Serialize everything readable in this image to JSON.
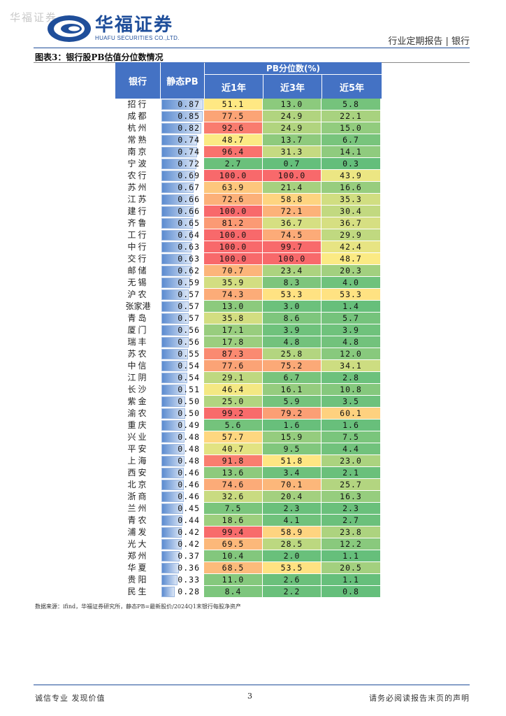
{
  "watermark": "华福证券",
  "logo": {
    "cn": "华福证券",
    "en": "HUAFU SECURITIES CO.,LTD."
  },
  "header": {
    "report_type": "行业定期报告 | 银行"
  },
  "figure": {
    "title": "图表3：银行股PB估值分位数情况"
  },
  "table": {
    "col_bank": "银行",
    "col_pb": "静态PB",
    "group_header": "PB分位数(%)",
    "col_1y": "近1年",
    "col_3y": "近3年",
    "col_5y": "近5年",
    "pb_max": 0.87,
    "colors": {
      "red": "#f8696b",
      "yellow": "#ffeb84",
      "green": "#63be7b",
      "header": "#4472c4"
    },
    "rows": [
      {
        "name": "招行",
        "pb": "0.87",
        "p1": "51.1",
        "p3": "13.0",
        "p5": "5.8"
      },
      {
        "name": "成都",
        "pb": "0.85",
        "p1": "77.5",
        "p3": "24.9",
        "p5": "22.1"
      },
      {
        "name": "杭州",
        "pb": "0.82",
        "p1": "92.6",
        "p3": "24.9",
        "p5": "15.0"
      },
      {
        "name": "常熟",
        "pb": "0.74",
        "p1": "48.7",
        "p3": "13.7",
        "p5": "6.7"
      },
      {
        "name": "南京",
        "pb": "0.74",
        "p1": "96.4",
        "p3": "31.3",
        "p5": "14.1"
      },
      {
        "name": "宁波",
        "pb": "0.72",
        "p1": "2.7",
        "p3": "0.7",
        "p5": "0.3"
      },
      {
        "name": "农行",
        "pb": "0.69",
        "p1": "100.0",
        "p3": "100.0",
        "p5": "43.9"
      },
      {
        "name": "苏州",
        "pb": "0.67",
        "p1": "63.9",
        "p3": "21.4",
        "p5": "16.6"
      },
      {
        "name": "江苏",
        "pb": "0.66",
        "p1": "72.6",
        "p3": "58.8",
        "p5": "35.3"
      },
      {
        "name": "建行",
        "pb": "0.66",
        "p1": "100.0",
        "p3": "72.1",
        "p5": "30.4"
      },
      {
        "name": "齐鲁",
        "pb": "0.65",
        "p1": "81.2",
        "p3": "36.7",
        "p5": "36.7"
      },
      {
        "name": "工行",
        "pb": "0.64",
        "p1": "100.0",
        "p3": "74.5",
        "p5": "29.9"
      },
      {
        "name": "中行",
        "pb": "0.63",
        "p1": "100.0",
        "p3": "99.7",
        "p5": "42.4"
      },
      {
        "name": "交行",
        "pb": "0.63",
        "p1": "100.0",
        "p3": "100.0",
        "p5": "48.7"
      },
      {
        "name": "邮储",
        "pb": "0.62",
        "p1": "70.7",
        "p3": "23.4",
        "p5": "20.3"
      },
      {
        "name": "无锡",
        "pb": "0.59",
        "p1": "35.9",
        "p3": "8.3",
        "p5": "4.0"
      },
      {
        "name": "沪农",
        "pb": "0.57",
        "p1": "74.3",
        "p3": "53.3",
        "p5": "53.3"
      },
      {
        "name": "张家港",
        "pb": "0.57",
        "p1": "13.0",
        "p3": "3.0",
        "p5": "1.4"
      },
      {
        "name": "青岛",
        "pb": "0.57",
        "p1": "35.8",
        "p3": "8.6",
        "p5": "5.7"
      },
      {
        "name": "厦门",
        "pb": "0.56",
        "p1": "17.1",
        "p3": "3.9",
        "p5": "3.9"
      },
      {
        "name": "瑞丰",
        "pb": "0.56",
        "p1": "17.8",
        "p3": "4.8",
        "p5": "4.8"
      },
      {
        "name": "苏农",
        "pb": "0.55",
        "p1": "87.3",
        "p3": "25.8",
        "p5": "12.0"
      },
      {
        "name": "中信",
        "pb": "0.54",
        "p1": "77.6",
        "p3": "75.2",
        "p5": "34.1"
      },
      {
        "name": "江阴",
        "pb": "0.54",
        "p1": "29.1",
        "p3": "6.7",
        "p5": "2.8"
      },
      {
        "name": "长沙",
        "pb": "0.51",
        "p1": "46.4",
        "p3": "16.1",
        "p5": "10.8"
      },
      {
        "name": "紫金",
        "pb": "0.50",
        "p1": "25.0",
        "p3": "5.9",
        "p5": "3.5"
      },
      {
        "name": "渝农",
        "pb": "0.50",
        "p1": "99.2",
        "p3": "79.2",
        "p5": "60.1"
      },
      {
        "name": "重庆",
        "pb": "0.49",
        "p1": "5.6",
        "p3": "1.6",
        "p5": "1.6"
      },
      {
        "name": "兴业",
        "pb": "0.48",
        "p1": "57.7",
        "p3": "15.9",
        "p5": "7.5"
      },
      {
        "name": "平安",
        "pb": "0.48",
        "p1": "40.7",
        "p3": "9.5",
        "p5": "4.4"
      },
      {
        "name": "上海",
        "pb": "0.48",
        "p1": "91.8",
        "p3": "51.8",
        "p5": "23.0"
      },
      {
        "name": "西安",
        "pb": "0.46",
        "p1": "13.6",
        "p3": "3.4",
        "p5": "2.1"
      },
      {
        "name": "北京",
        "pb": "0.46",
        "p1": "74.6",
        "p3": "70.1",
        "p5": "25.7"
      },
      {
        "name": "浙商",
        "pb": "0.46",
        "p1": "32.6",
        "p3": "20.4",
        "p5": "16.3"
      },
      {
        "name": "兰州",
        "pb": "0.45",
        "p1": "7.5",
        "p3": "2.3",
        "p5": "2.3"
      },
      {
        "name": "青农",
        "pb": "0.44",
        "p1": "18.6",
        "p3": "4.1",
        "p5": "2.7"
      },
      {
        "name": "浦发",
        "pb": "0.42",
        "p1": "99.4",
        "p3": "58.9",
        "p5": "23.8"
      },
      {
        "name": "光大",
        "pb": "0.42",
        "p1": "69.5",
        "p3": "28.5",
        "p5": "12.2"
      },
      {
        "name": "郑州",
        "pb": "0.37",
        "p1": "10.4",
        "p3": "2.0",
        "p5": "1.1"
      },
      {
        "name": "华夏",
        "pb": "0.36",
        "p1": "68.5",
        "p3": "53.5",
        "p5": "20.5"
      },
      {
        "name": "贵阳",
        "pb": "0.33",
        "p1": "11.0",
        "p3": "2.6",
        "p5": "1.1"
      },
      {
        "name": "民生",
        "pb": "0.28",
        "p1": "8.4",
        "p3": "2.2",
        "p5": "0.8"
      }
    ]
  },
  "source": "数据来源：ifind，华福证券研究所，静态PB=最新股价/2024Q1末银行每股净资产",
  "footer": {
    "left": "诚信专业  发现价值",
    "page": "3",
    "right": "请务必阅读报告末页的声明"
  }
}
